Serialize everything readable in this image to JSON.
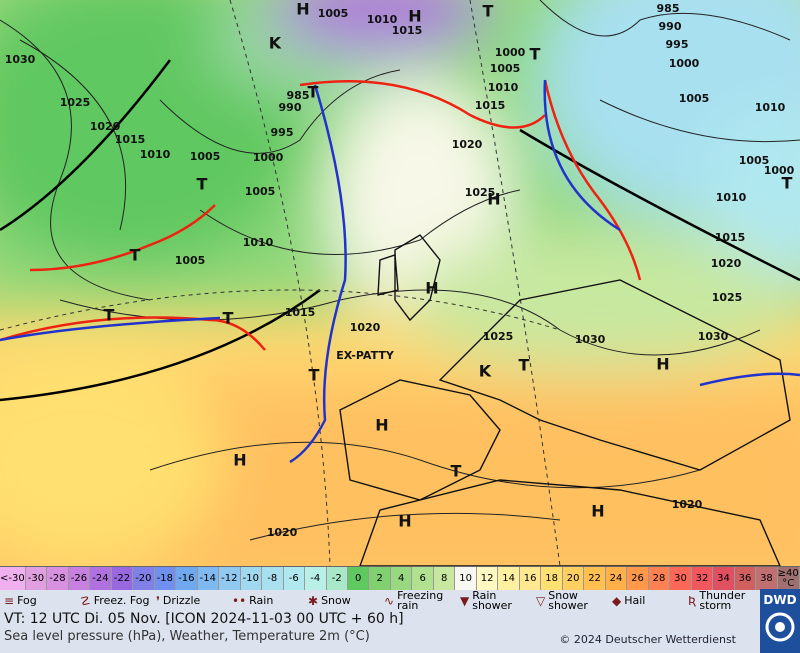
{
  "map": {
    "pressure_labels": [
      "1030",
      "1025",
      "1020",
      "1015",
      "1010",
      "1005",
      "1000",
      "995",
      "990",
      "985",
      "1005",
      "1010",
      "1005",
      "1015",
      "1020",
      "1025",
      "1020",
      "1015",
      "1010",
      "1005",
      "1000",
      "985",
      "990",
      "995",
      "1000",
      "1005",
      "1010",
      "1005",
      "1000",
      "1010",
      "1015",
      "1020",
      "1025",
      "1030",
      "1030",
      "1025",
      "1020",
      "1020",
      "1005",
      "1010",
      "1015"
    ],
    "centers": [
      "H",
      "H",
      "T",
      "T",
      "T",
      "T",
      "H",
      "T",
      "H",
      "T",
      "T",
      "T",
      "H",
      "H",
      "T",
      "H",
      "H",
      "H",
      "T",
      "T",
      "K",
      "K"
    ],
    "storm_name": "EX-PATTY"
  },
  "temperature_scale": {
    "labels": [
      "<-30",
      "-30",
      "-28",
      "-26",
      "-24",
      "-22",
      "-20",
      "-18",
      "-16",
      "-14",
      "-12",
      "-10",
      "-8",
      "-6",
      "-4",
      "-2",
      "0",
      "2",
      "4",
      "6",
      "8",
      "10",
      "12",
      "14",
      "16",
      "18",
      "20",
      "22",
      "24",
      "26",
      "28",
      "30",
      "32",
      "34",
      "36",
      "38",
      "≥40 °C"
    ],
    "colors": [
      "#f0b0f0",
      "#e0a0e0",
      "#d890e0",
      "#c880e0",
      "#b070e0",
      "#9868e0",
      "#8080e8",
      "#7090f0",
      "#70a8f0",
      "#80b8f0",
      "#90c8f0",
      "#a0d8f0",
      "#a8e0f0",
      "#b0e8f0",
      "#b8f0e8",
      "#a8e8c8",
      "#60c860",
      "#80d070",
      "#98d880",
      "#b0e090",
      "#c8e8a0",
      "#f8f8f0",
      "#fff8c0",
      "#fff0a0",
      "#ffe890",
      "#ffe070",
      "#ffd060",
      "#ffc050",
      "#ffb048",
      "#ff9848",
      "#ff8050",
      "#ff6858",
      "#f05860",
      "#e05060",
      "#d06060",
      "#c07070",
      "#a07070"
    ]
  },
  "weather_legend": [
    "Fog",
    "Freez. Fog",
    "Drizzle",
    "Rain",
    "Snow",
    "Freezing rain",
    "Rain shower",
    "Snow shower",
    "Hail",
    "Thunder storm"
  ],
  "footer": {
    "valid_time": "VT: 12 UTC Di.  05 Nov. [ICON 2024-11-03  00 UTC + 60 h]",
    "description": "Sea level pressure (hPa), Weather, Temperature 2m (°C)",
    "copyright": "© 2024 Deutscher Wetterdienst",
    "logo": "DWD"
  }
}
